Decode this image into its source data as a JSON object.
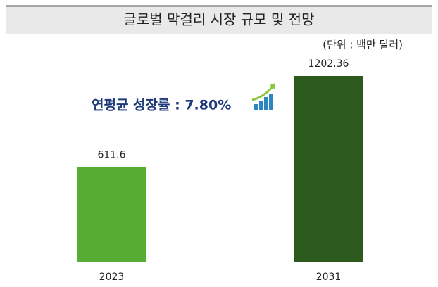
{
  "chart_data": {
    "type": "bar",
    "title": "글로벌 막걸리 시장 규모 및 전망",
    "subtitle": "(단위 : 백만 달러)",
    "annotation": "연평균 성장률 : 7.80%",
    "categories": [
      "2023",
      "2031"
    ],
    "values": [
      611.6,
      1202.36
    ],
    "colors": [
      "#57ad33",
      "#2b5a1c"
    ]
  }
}
